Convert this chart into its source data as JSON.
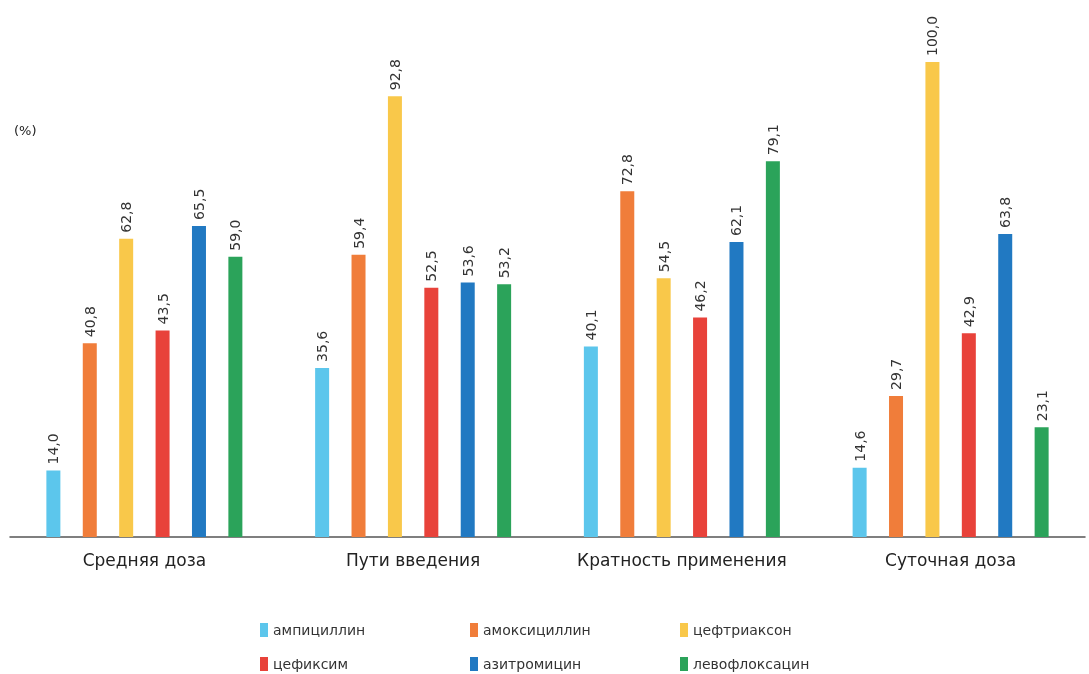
{
  "chart_data": {
    "type": "bar",
    "ylabel": "(%)",
    "categories": [
      "Средняя доза",
      "Пути введения",
      "Кратность применения",
      "Суточная доза"
    ],
    "ylim": [
      0,
      100
    ],
    "legend": "bottom",
    "grid": false,
    "series": [
      {
        "name": "ампициллин",
        "color": "#5cc6ec",
        "values": [
          14.0,
          35.6,
          40.1,
          14.6
        ],
        "value_labels": [
          "14,0",
          "35,6",
          "40,1",
          "14,6"
        ]
      },
      {
        "name": "амоксициллин",
        "color": "#f07d3a",
        "values": [
          40.8,
          59.4,
          72.8,
          29.7
        ],
        "value_labels": [
          "40,8",
          "59,4",
          "72,8",
          "29,7"
        ]
      },
      {
        "name": "цефтриаксон",
        "color": "#f9c84a",
        "values": [
          62.8,
          92.8,
          54.5,
          100.0
        ],
        "value_labels": [
          "62,8",
          "92,8",
          "54,5",
          "100,0"
        ]
      },
      {
        "name": "цефиксим",
        "color": "#e8423a",
        "values": [
          43.5,
          52.5,
          46.2,
          42.9
        ],
        "value_labels": [
          "43,5",
          "52,5",
          "46,2",
          "42,9"
        ]
      },
      {
        "name": "азитромицин",
        "color": "#2179c2",
        "values": [
          65.5,
          53.6,
          62.1,
          63.8
        ],
        "value_labels": [
          "65,5",
          "53,6",
          "62,1",
          "63,8"
        ]
      },
      {
        "name": "левофлоксацин",
        "color": "#2ba35a",
        "values": [
          59.0,
          53.2,
          79.1,
          23.1
        ],
        "value_labels": [
          "59,0",
          "53,2",
          "79,1",
          "23,1"
        ]
      }
    ]
  }
}
